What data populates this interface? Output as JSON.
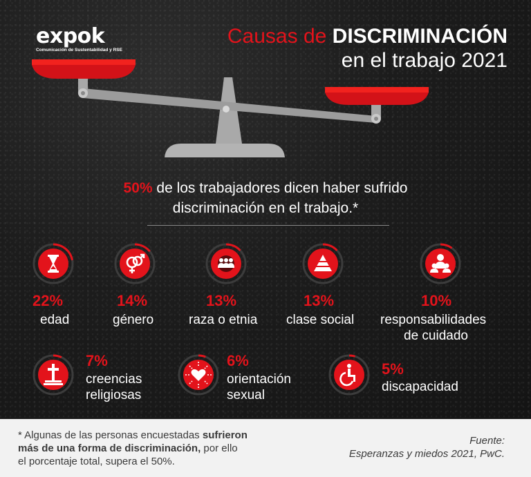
{
  "brand": {
    "name": "expok",
    "tagline": "Comunicación de Sustentabilidad y RSE"
  },
  "title": {
    "part1": "Causas de ",
    "part2": "DISCRIMINACIÓN",
    "line2": "en el trabajo 2021"
  },
  "statement": {
    "pct": "50%",
    "line1_rest": " de los trabajadores dicen haber sufrido",
    "line2": "discriminación en el trabajo.*"
  },
  "causes": [
    {
      "pct": "22%",
      "label": "edad",
      "icon": "hourglass-icon",
      "value": 22
    },
    {
      "pct": "14%",
      "label": "género",
      "icon": "gender-icon",
      "value": 14
    },
    {
      "pct": "13%",
      "label": "raza o etnia",
      "icon": "people-globe-icon",
      "value": 13
    },
    {
      "pct": "13%",
      "label": "clase social",
      "icon": "pyramid-icon",
      "value": 13
    },
    {
      "pct": "10%",
      "label": "responsabilidades",
      "label2": "de cuidado",
      "icon": "caregiver-icon",
      "value": 10
    },
    {
      "pct": "7%",
      "label": "creencias",
      "label2": "religiosas",
      "icon": "cross-icon",
      "value": 7
    },
    {
      "pct": "6%",
      "label": "orientación",
      "label2": "sexual",
      "icon": "heart-icon",
      "value": 6
    },
    {
      "pct": "5%",
      "label": "discapacidad",
      "icon": "wheelchair-icon",
      "value": 5
    }
  ],
  "footer": {
    "note_a": "* Algunas de las personas encuestadas ",
    "note_b": "sufrieron",
    "note_c": "más de una forma de discriminación,",
    "note_d": " por ello",
    "note_e": "el porcentaje total, supera el 50%.",
    "source_label": "Fuente:",
    "source_text": "Esperanzas y miedos 2021, PwC."
  },
  "colors": {
    "accent": "#e3131b",
    "ring_track": "#3a3a3a",
    "icon_bg": "#e3131b"
  }
}
